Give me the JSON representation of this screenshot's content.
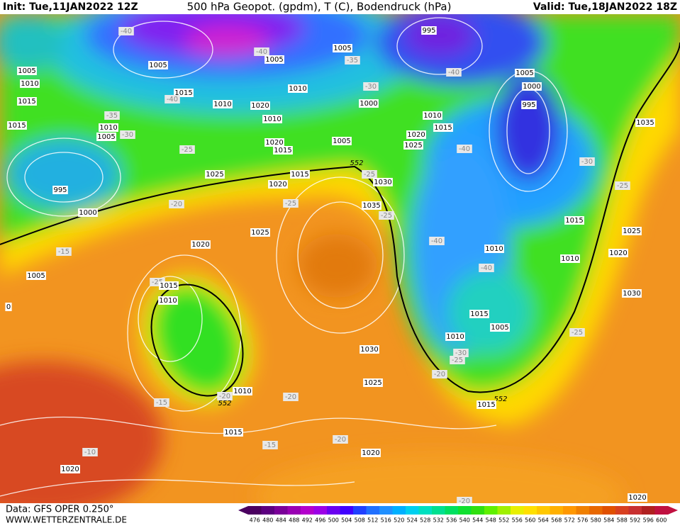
{
  "header": {
    "init": "Init: Tue,11JAN2022 12Z",
    "title": "500 hPa Geopot. (gpdm), T (C), Bodendruck (hPa)",
    "valid": "Valid: Tue,18JAN2022 18Z"
  },
  "footer": {
    "source": "Data: GFS OPER 0.250°",
    "site": "WWW.WETTERZENTRALE.DE"
  },
  "colorbar": {
    "labels": [
      476,
      480,
      484,
      488,
      492,
      496,
      500,
      504,
      508,
      512,
      516,
      520,
      524,
      528,
      532,
      536,
      540,
      544,
      548,
      552,
      556,
      560,
      564,
      568,
      572,
      576,
      580,
      584,
      588,
      592,
      596,
      600
    ],
    "colors": [
      "#4b0060",
      "#5c0080",
      "#7a0099",
      "#9900b3",
      "#b300cc",
      "#9c00e6",
      "#6a00f0",
      "#4000ff",
      "#2040ff",
      "#2070ff",
      "#2090ff",
      "#00b0ff",
      "#00d0f0",
      "#00e0c0",
      "#00e090",
      "#00e060",
      "#10e030",
      "#30e010",
      "#60f000",
      "#a0f000",
      "#e8f000",
      "#ffe000",
      "#ffc800",
      "#ffb000",
      "#ff9800",
      "#f08000",
      "#e86800",
      "#e05000",
      "#d84020",
      "#c83030",
      "#b02020",
      "#c01040"
    ]
  },
  "map_labels": [
    "-40",
    "1005",
    "1010",
    "1015",
    "1015",
    "1010",
    "1005",
    "-35",
    "-30",
    "995",
    "1000",
    "1005",
    "1015",
    "-40",
    "1010",
    "1020",
    "-40",
    "1005",
    "1005",
    "-35",
    "-30",
    "1010",
    "1000",
    "1010",
    "1020",
    "1015",
    "1005",
    "-25",
    "1025",
    "1015",
    "1020",
    "552",
    "-25",
    "1030",
    "1035",
    "-25",
    "-20",
    "-25",
    "1025",
    "1020",
    "-15",
    "1005",
    "995",
    "-40",
    "1005",
    "1000",
    "995",
    "1010",
    "1015",
    "1020",
    "1025",
    "-40",
    "-30",
    "1035",
    "-25",
    "1015",
    "1025",
    "1020",
    "1010",
    "1010",
    "-40",
    "-40",
    "1030",
    "1015",
    "1005",
    "1010",
    "-25",
    "-30",
    "-25",
    "-20",
    "552",
    "1015",
    "1030",
    "1025",
    "-25",
    "1015",
    "1010",
    "-20",
    "1010",
    "552",
    "-20",
    "-15",
    "1015",
    "-15",
    "-20",
    "1020",
    "-10",
    "1020",
    "1020",
    "-20",
    "0"
  ]
}
